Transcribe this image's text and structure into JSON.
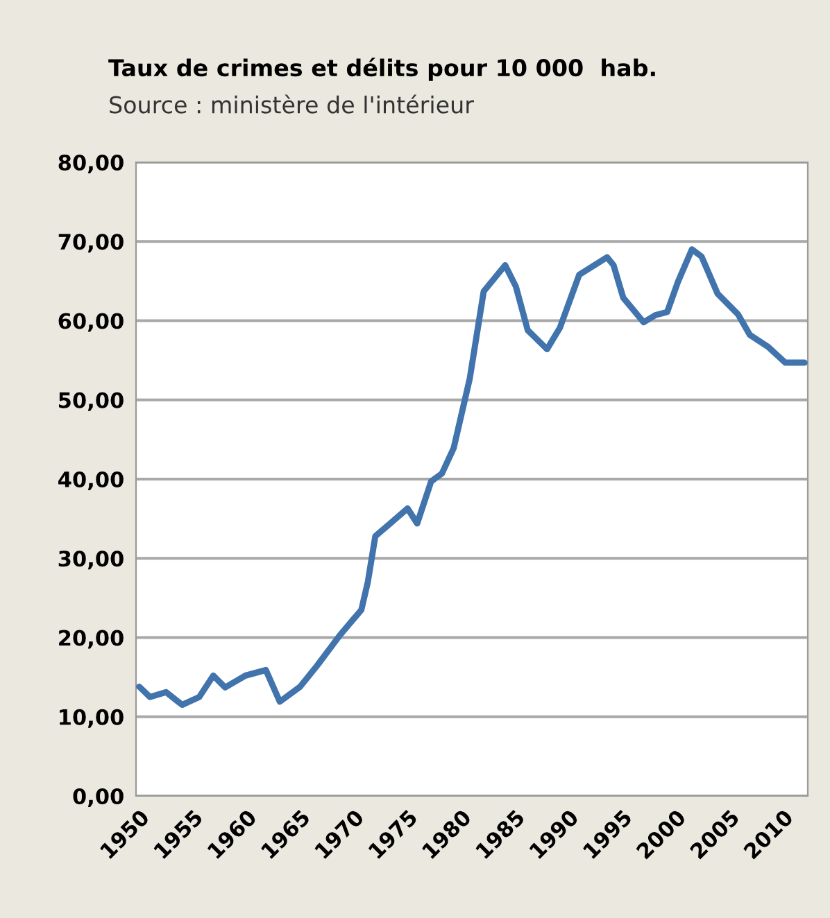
{
  "chart_data": {
    "type": "line",
    "title": "Taux de crimes et délits pour 10 000  hab.",
    "subtitle": "Source : ministère de l'intérieur",
    "x": [
      1950,
      1951,
      1952.5,
      1954,
      1955.6,
      1956.9,
      1958,
      1959.9,
      1961.8,
      1963.1,
      1965,
      1966.6,
      1968.7,
      1970.7,
      1971.3,
      1972,
      1973.3,
      1975,
      1975.9,
      1977.2,
      1978.2,
      1979.3,
      1980.8,
      1982.1,
      1984.1,
      1985.1,
      1986.2,
      1988,
      1989.2,
      1991,
      1993.6,
      1994.2,
      1995.1,
      1997,
      1998.1,
      1999.2,
      2000.2,
      2001.5,
      2002.4,
      2003.9,
      2005.8,
      2006.9,
      2008.6,
      2010.2,
      2012
    ],
    "series": [
      {
        "color": "#4173ad",
        "values": [
          13.8,
          12.5,
          13.1,
          11.5,
          12.5,
          15.2,
          13.7,
          15.2,
          15.9,
          11.9,
          13.8,
          16.5,
          20.3,
          23.5,
          27,
          32.8,
          34.3,
          36.3,
          34.4,
          39.7,
          40.7,
          43.9,
          52.7,
          63.7,
          67.0,
          64.3,
          58.8,
          56.4,
          59.1,
          65.8,
          68.0,
          67.0,
          62.9,
          59.8,
          60.7,
          61.1,
          64.9,
          69.0,
          68.1,
          63.4,
          60.8,
          58.2,
          56.7,
          54.7,
          54.7
        ]
      }
    ],
    "xlim": [
      1949.7,
      2012.3
    ],
    "xticks": [
      1950,
      1955,
      1960,
      1965,
      1970,
      1975,
      1980,
      1985,
      1990,
      1995,
      2000,
      2005,
      2010
    ],
    "ylim": [
      0,
      80
    ],
    "yticks": [
      {
        "value": 0,
        "label": "0,00"
      },
      {
        "value": 10,
        "label": "10,00"
      },
      {
        "value": 20,
        "label": "20,00"
      },
      {
        "value": 30,
        "label": "30,00"
      },
      {
        "value": 40,
        "label": "40,00"
      },
      {
        "value": 50,
        "label": "50,00"
      },
      {
        "value": 60,
        "label": "60,00"
      },
      {
        "value": 70,
        "label": "70,00"
      },
      {
        "value": 80,
        "label": "80,00"
      }
    ],
    "grid": "y"
  }
}
